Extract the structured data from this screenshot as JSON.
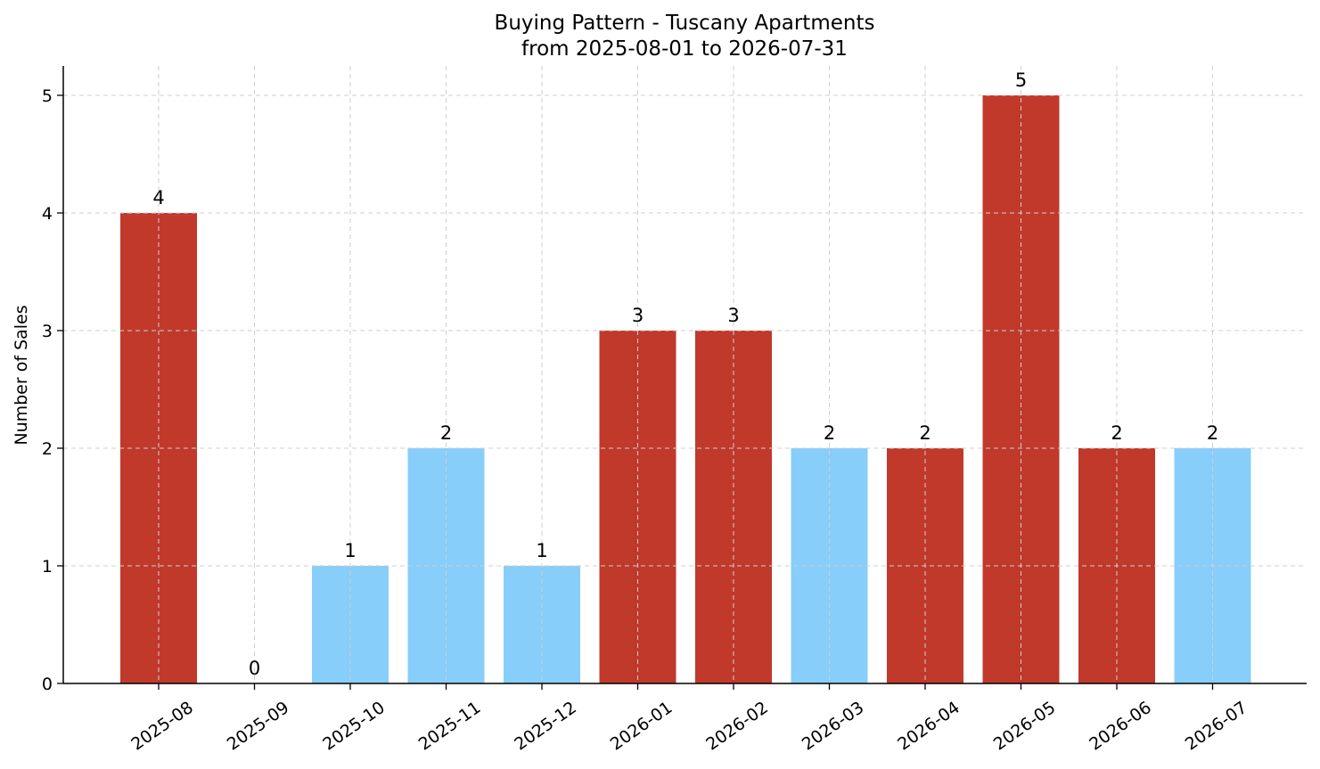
{
  "chart_data": {
    "type": "bar",
    "title": "Buying Pattern - Tuscany Apartments",
    "subtitle": "from 2025-08-01 to 2026-07-31",
    "xlabel": "",
    "ylabel": "Number of Sales",
    "categories": [
      "2025-08",
      "2025-09",
      "2025-10",
      "2025-11",
      "2025-12",
      "2026-01",
      "2026-02",
      "2026-03",
      "2026-04",
      "2026-05",
      "2026-06",
      "2026-07"
    ],
    "values": [
      4,
      0,
      1,
      2,
      1,
      3,
      3,
      2,
      2,
      5,
      2,
      2
    ],
    "bar_colors": [
      "#c0392b",
      "#c0392b",
      "#87cefa",
      "#87cefa",
      "#87cefa",
      "#c0392b",
      "#c0392b",
      "#87cefa",
      "#c0392b",
      "#c0392b",
      "#c0392b",
      "#87cefa"
    ],
    "yticks": [
      0,
      1,
      2,
      3,
      4,
      5
    ],
    "ylim": [
      0,
      5.25
    ],
    "grid": true,
    "colors": {
      "high": "#c0392b",
      "low": "#87cefa"
    }
  }
}
